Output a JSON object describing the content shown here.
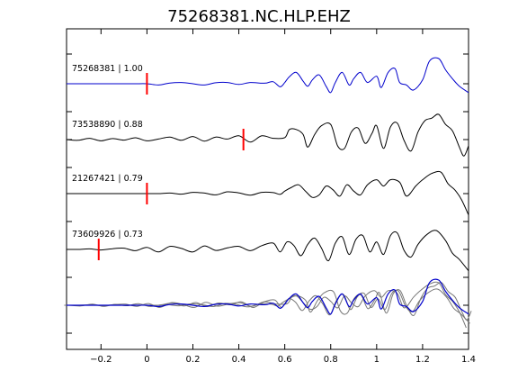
{
  "chart_data": {
    "type": "line",
    "title": "75268381.NC.HLP.EHZ",
    "xlabel": "",
    "ylabel": "",
    "xlim": [
      -0.35,
      1.4
    ],
    "x_ticks": [
      -0.2,
      0,
      0.2,
      0.4,
      0.6,
      0.8,
      1,
      1.2,
      1.4
    ],
    "x_tick_labels": [
      "−0.2",
      "0",
      "0.2",
      "0.4",
      "0.6",
      "0.8",
      "1",
      "1.2",
      "1.4"
    ],
    "grid": false,
    "legend": "none",
    "colors": {
      "master": "#0000cc",
      "neighbor": "#000000",
      "overlay": "#777777",
      "pick": "#ff0000",
      "frame": "#000000"
    },
    "series": [
      {
        "label": "75268381 | 1.00",
        "pick_x": 0.0,
        "color_key": "master",
        "x": [
          -0.35,
          -0.3,
          -0.25,
          -0.2,
          -0.15,
          -0.1,
          -0.05,
          0,
          0.05,
          0.1,
          0.15,
          0.2,
          0.25,
          0.3,
          0.35,
          0.4,
          0.45,
          0.5,
          0.52,
          0.55,
          0.58,
          0.6,
          0.62,
          0.65,
          0.68,
          0.7,
          0.72,
          0.75,
          0.78,
          0.8,
          0.82,
          0.85,
          0.88,
          0.9,
          0.93,
          0.96,
          1.0,
          1.02,
          1.05,
          1.08,
          1.1,
          1.13,
          1.16,
          1.2,
          1.23,
          1.27,
          1.3,
          1.33,
          1.36,
          1.4
        ],
        "y": [
          0,
          0,
          0,
          0,
          0,
          0,
          0,
          0,
          -0.05,
          0.03,
          0.05,
          0,
          -0.05,
          0.04,
          0.05,
          -0.03,
          0.05,
          0.02,
          0.03,
          0.08,
          -0.12,
          0.05,
          0.28,
          0.45,
          0.1,
          -0.1,
          0.15,
          0.35,
          -0.1,
          -0.35,
          0.05,
          0.45,
          -0.05,
          0.2,
          0.45,
          0.05,
          0.3,
          -0.15,
          0.45,
          0.6,
          0.05,
          -0.05,
          -0.25,
          0.15,
          0.9,
          1.0,
          0.55,
          0.2,
          -0.1,
          -0.35
        ]
      },
      {
        "label": "73538890 | 0.88",
        "pick_x": 0.42,
        "color_key": "neighbor",
        "x": [
          -0.35,
          -0.3,
          -0.25,
          -0.2,
          -0.15,
          -0.1,
          -0.05,
          0,
          0.05,
          0.1,
          0.15,
          0.2,
          0.25,
          0.3,
          0.35,
          0.4,
          0.45,
          0.5,
          0.55,
          0.6,
          0.62,
          0.65,
          0.68,
          0.7,
          0.73,
          0.76,
          0.8,
          0.83,
          0.86,
          0.89,
          0.92,
          0.95,
          0.98,
          1.0,
          1.03,
          1.06,
          1.09,
          1.12,
          1.15,
          1.18,
          1.21,
          1.24,
          1.27,
          1.3,
          1.33,
          1.36,
          1.38,
          1.4
        ],
        "y": [
          0,
          -0.03,
          0.05,
          -0.05,
          0.04,
          -0.02,
          0.07,
          -0.05,
          0.02,
          0.1,
          -0.03,
          0.12,
          -0.06,
          0.1,
          0.02,
          0.15,
          -0.1,
          0.15,
          0.05,
          0.08,
          0.4,
          0.4,
          0.2,
          -0.3,
          0.2,
          0.55,
          0.6,
          -0.25,
          -0.35,
          0.3,
          0.45,
          -0.15,
          0.25,
          0.55,
          -0.35,
          0.5,
          0.65,
          -0.05,
          -0.45,
          0.3,
          0.75,
          0.85,
          1.0,
          0.6,
          0.35,
          -0.3,
          -0.65,
          -0.25
        ]
      },
      {
        "label": "21267421 | 0.79",
        "pick_x": 0.0,
        "color_key": "neighbor",
        "x": [
          -0.35,
          -0.3,
          -0.25,
          -0.2,
          -0.15,
          -0.1,
          -0.05,
          0,
          0.05,
          0.1,
          0.15,
          0.2,
          0.25,
          0.3,
          0.35,
          0.4,
          0.45,
          0.5,
          0.55,
          0.58,
          0.6,
          0.63,
          0.66,
          0.69,
          0.72,
          0.75,
          0.78,
          0.81,
          0.84,
          0.87,
          0.9,
          0.93,
          0.96,
          1.0,
          1.03,
          1.06,
          1.1,
          1.13,
          1.17,
          1.2,
          1.24,
          1.28,
          1.31,
          1.34,
          1.37,
          1.4
        ],
        "y": [
          0,
          0,
          0,
          0,
          0,
          0,
          0,
          0,
          0,
          0.02,
          -0.02,
          0.05,
          0.02,
          -0.05,
          0.07,
          0.03,
          -0.06,
          0.05,
          0.04,
          -0.03,
          0.1,
          0.25,
          0.35,
          0.1,
          -0.15,
          -0.05,
          0.3,
          0.15,
          -0.1,
          0.35,
          0.1,
          -0.05,
          0.35,
          0.55,
          0.3,
          0.55,
          0.45,
          -0.1,
          0.3,
          0.55,
          0.8,
          0.85,
          0.4,
          0.15,
          -0.25,
          -0.85
        ]
      },
      {
        "label": "73609926 | 0.73",
        "pick_x": -0.21,
        "color_key": "neighbor",
        "x": [
          -0.35,
          -0.3,
          -0.25,
          -0.2,
          -0.15,
          -0.1,
          -0.05,
          0,
          0.05,
          0.1,
          0.15,
          0.2,
          0.25,
          0.3,
          0.35,
          0.4,
          0.45,
          0.5,
          0.55,
          0.58,
          0.61,
          0.64,
          0.67,
          0.7,
          0.73,
          0.76,
          0.79,
          0.82,
          0.85,
          0.88,
          0.91,
          0.94,
          0.97,
          1.0,
          1.03,
          1.06,
          1.09,
          1.12,
          1.15,
          1.18,
          1.22,
          1.26,
          1.3,
          1.33,
          1.36,
          1.4
        ],
        "y": [
          0,
          0,
          0.02,
          -0.02,
          0.03,
          0.05,
          -0.05,
          0.08,
          -0.1,
          0.12,
          0.04,
          -0.1,
          0.14,
          -0.04,
          0.06,
          0.12,
          -0.05,
          0.15,
          0.25,
          -0.1,
          0.3,
          0.15,
          -0.25,
          0.2,
          0.45,
          0.05,
          -0.45,
          0.25,
          0.5,
          -0.2,
          0.4,
          0.55,
          -0.1,
          0.3,
          -0.2,
          0.55,
          0.65,
          -0.05,
          -0.3,
          0.2,
          0.6,
          0.75,
          0.35,
          -0.15,
          -0.4,
          -0.85
        ]
      }
    ],
    "overlay_label": ""
  }
}
